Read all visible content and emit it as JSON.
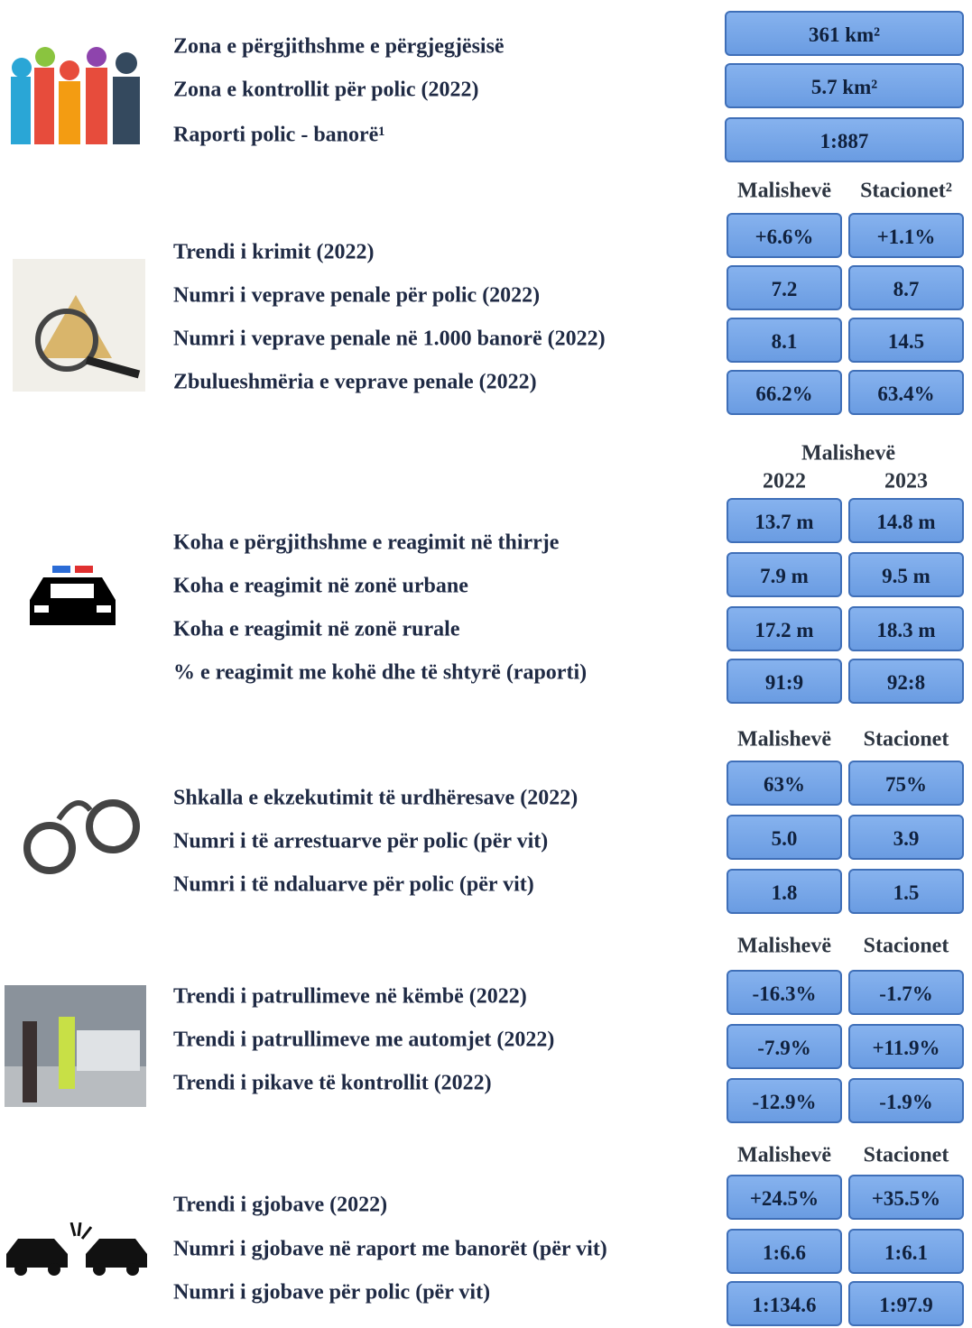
{
  "sections": [
    {
      "labels": [
        "Zona e përgjithshme e përgjegjësisë",
        "Zona e kontrollit për polic (2022)",
        "Raporti polic - banorë¹"
      ],
      "rows": [
        [
          "361 km²"
        ],
        [
          "5.7 km²"
        ],
        [
          "1:887"
        ]
      ]
    },
    {
      "headers": [
        "Malishevë",
        "Stacionet²"
      ],
      "labels": [
        "Trendi i krimit (2022)",
        "Numri i veprave penale për polic (2022)",
        "Numri i veprave penale në 1.000 banorë (2022)",
        "Zbulueshmëria e veprave penale (2022)"
      ],
      "rows": [
        [
          "+6.6%",
          "+1.1%"
        ],
        [
          "7.2",
          "8.7"
        ],
        [
          "8.1",
          "14.5"
        ],
        [
          "66.2%",
          "63.4%"
        ]
      ]
    },
    {
      "group": "Malishevë",
      "headers": [
        "2022",
        "2023"
      ],
      "labels": [
        "Koha e përgjithshme e reagimit në thirrje",
        "Koha e reagimit në zonë urbane",
        "Koha e reagimit në zonë rurale",
        "% e reagimit me kohë dhe të shtyrë (raporti)"
      ],
      "rows": [
        [
          "13.7 m",
          "14.8 m"
        ],
        [
          "7.9 m",
          "9.5 m"
        ],
        [
          "17.2 m",
          "18.3 m"
        ],
        [
          "91:9",
          "92:8"
        ]
      ]
    },
    {
      "headers": [
        "Malishevë",
        "Stacionet"
      ],
      "labels": [
        "Shkalla e ekzekutimit të urdhëresave (2022)",
        "Numri i të arrestuarve për polic (për vit)",
        "Numri i të ndaluarve për polic (për vit)"
      ],
      "rows": [
        [
          "63%",
          "75%"
        ],
        [
          "5.0",
          "3.9"
        ],
        [
          "1.8",
          "1.5"
        ]
      ]
    },
    {
      "headers": [
        "Malishevë",
        "Stacionet"
      ],
      "labels": [
        "Trendi i patrullimeve në këmbë (2022)",
        "Trendi i patrullimeve me automjet (2022)",
        "Trendi i pikave të kontrollit (2022)"
      ],
      "rows": [
        [
          "-16.3%",
          "-1.7%"
        ],
        [
          "-7.9%",
          "+11.9%"
        ],
        [
          "-12.9%",
          "-1.9%"
        ]
      ]
    },
    {
      "headers": [
        "Malishevë",
        "Stacionet"
      ],
      "labels": [
        "Trendi i gjobave (2022)",
        "Numri i gjobave në raport me banorët (për vit)",
        "Numri i gjobave për polic (për vit)"
      ],
      "rows": [
        [
          "+24.5%",
          "+35.5%"
        ],
        [
          "1:6.6",
          "1:6.1"
        ],
        [
          "1:134.6",
          "1:97.9"
        ]
      ]
    }
  ]
}
